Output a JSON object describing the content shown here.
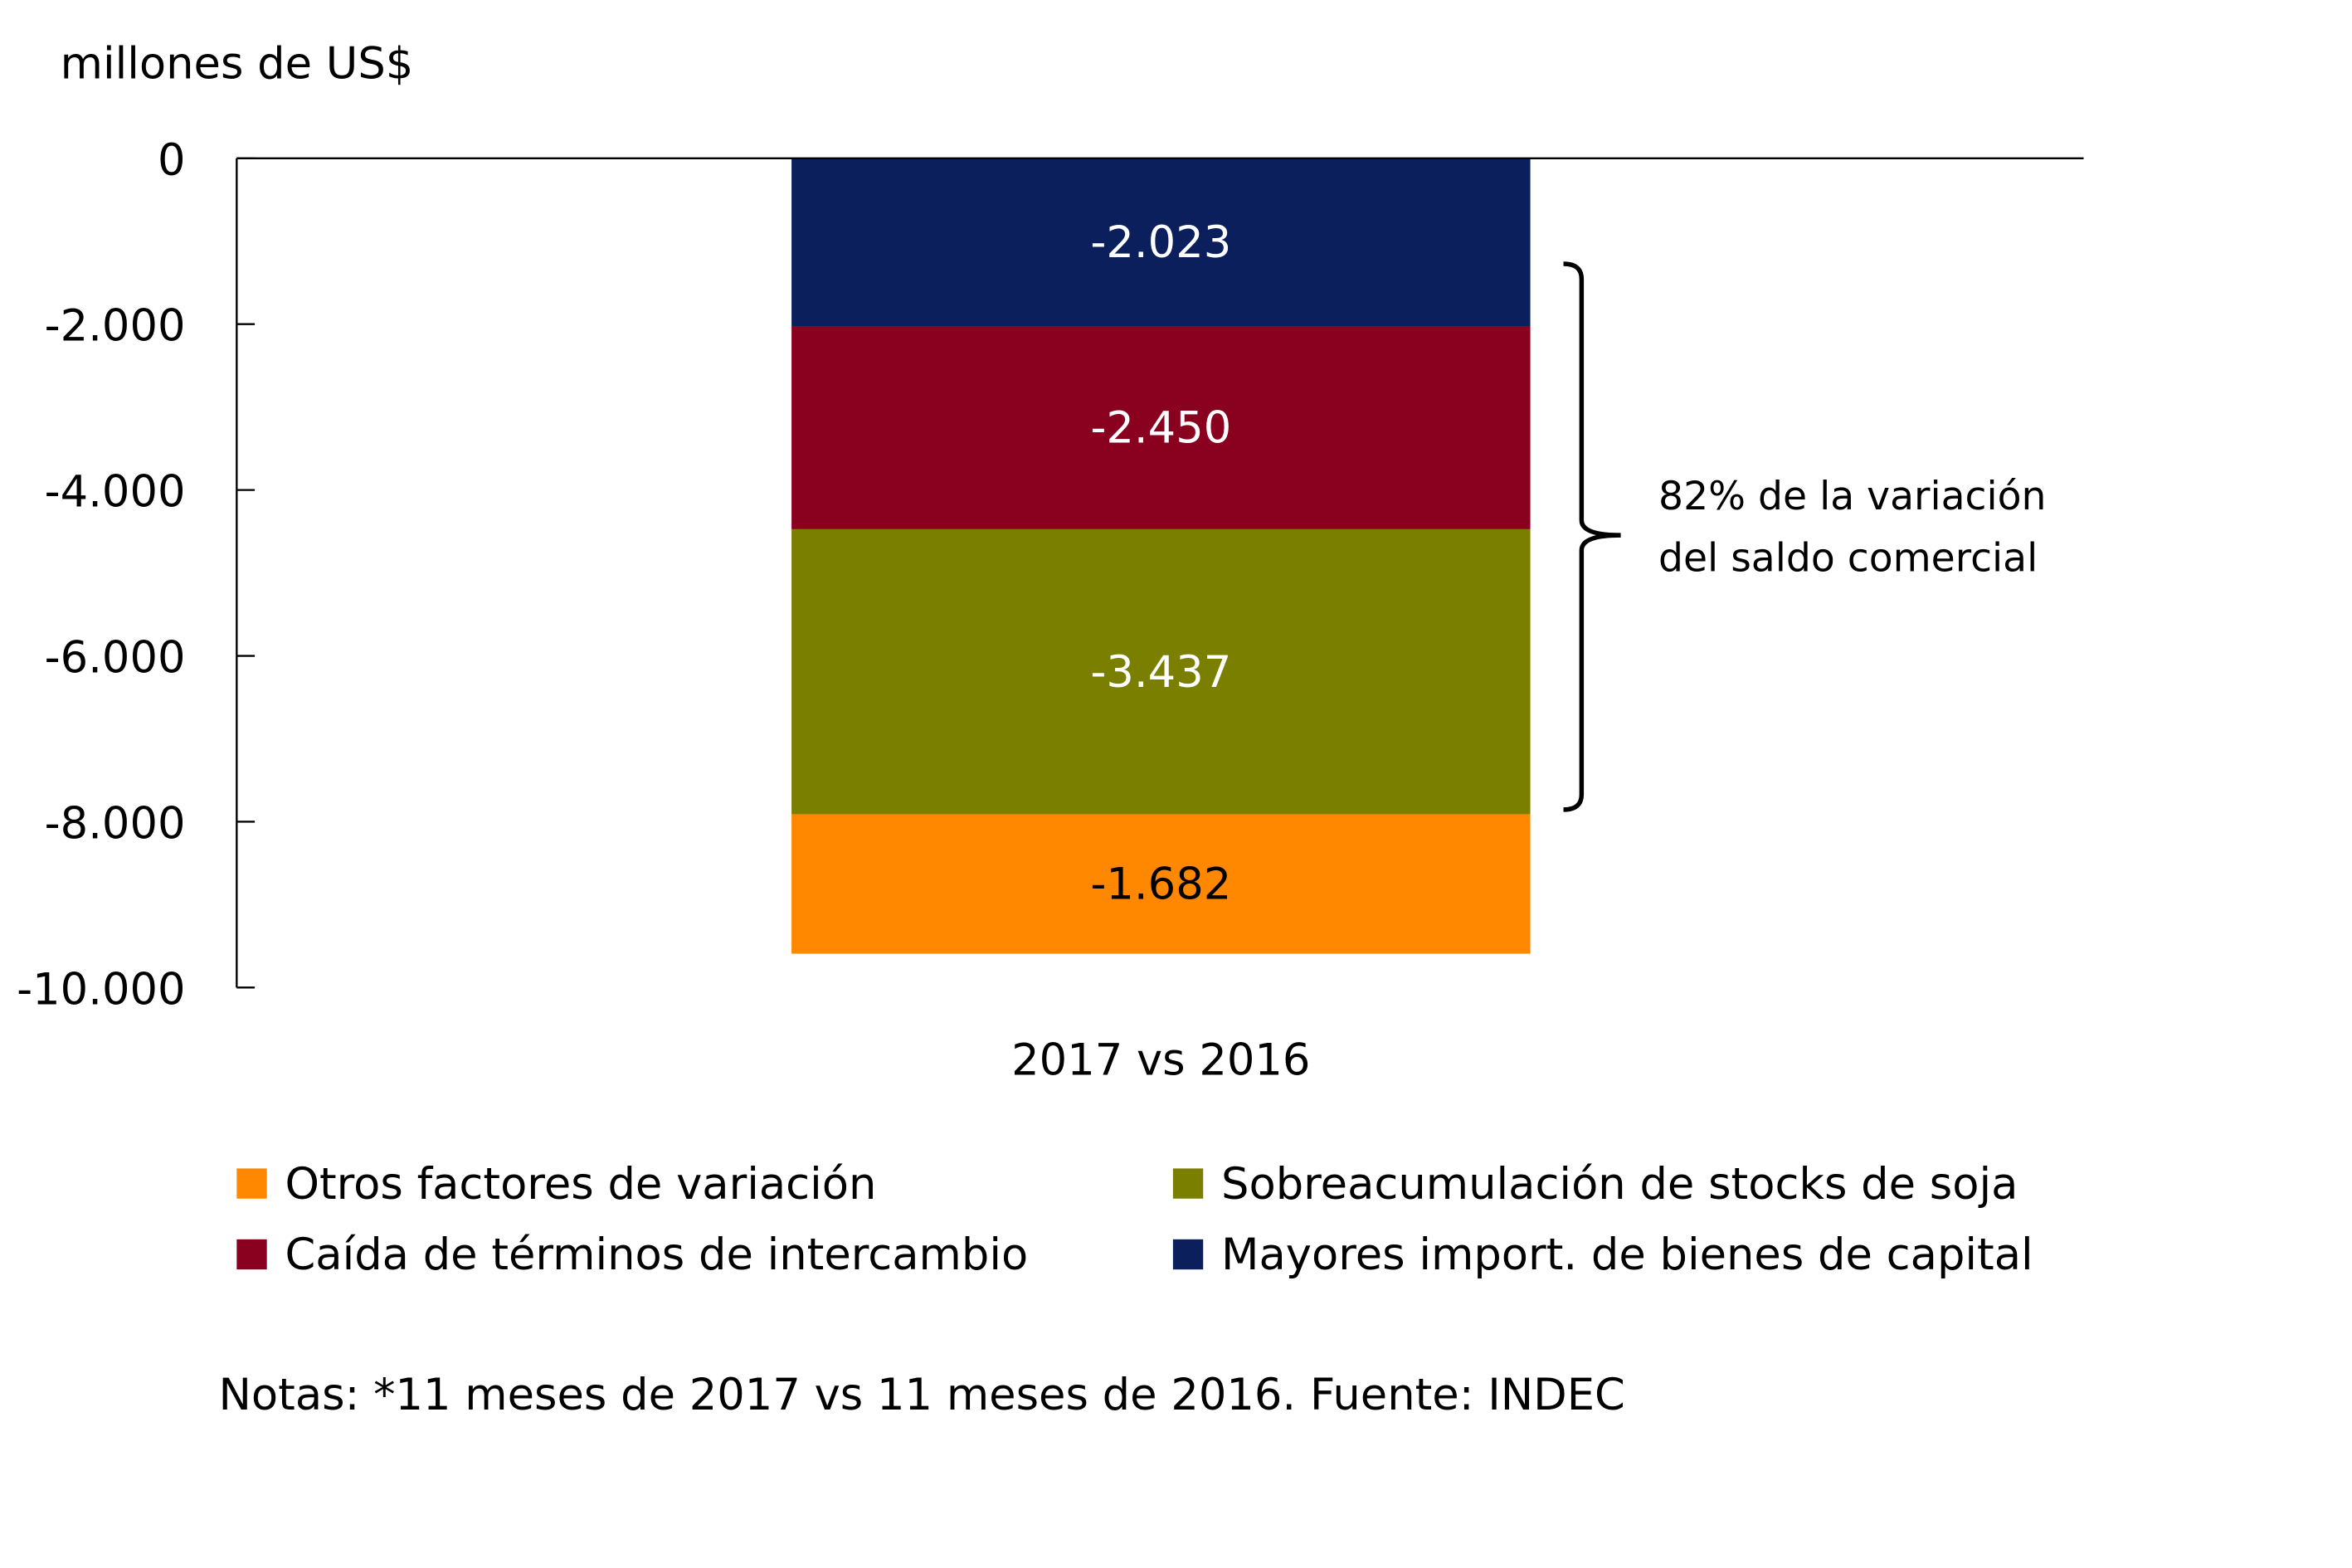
{
  "chart_data": {
    "type": "bar",
    "stacked": true,
    "ylabel": "millones de US$",
    "ylim": [
      -10000,
      0
    ],
    "yticks": [
      0,
      -2000,
      -4000,
      -6000,
      -8000,
      -10000
    ],
    "ytick_labels": [
      "0",
      "-2.000",
      "-4.000",
      "-6.000",
      "-8.000",
      "-10.000"
    ],
    "categories": [
      "2017 vs 2016"
    ],
    "series": [
      {
        "name": "Mayores import. de bienes de capital",
        "values": [
          -2023
        ],
        "label": "-2.023",
        "color": "#0b1f5c",
        "label_color": "#ffffff"
      },
      {
        "name": "Caída de términos de intercambio",
        "values": [
          -2450
        ],
        "label": "-2.450",
        "color": "#8a001f",
        "label_color": "#ffffff"
      },
      {
        "name": "Sobreacumulación de stocks de soja",
        "values": [
          -3437
        ],
        "label": "-3.437",
        "color": "#7a7f00",
        "label_color": "#ffffff"
      },
      {
        "name": "Otros factores de variación",
        "values": [
          -1682
        ],
        "label": "-1.682",
        "color": "#ff8800",
        "label_color": "#000000"
      }
    ],
    "annotation": {
      "line1": "82% de la variación",
      "line2": "del saldo comercial"
    },
    "legend_order": [
      3,
      2,
      1,
      0
    ],
    "legend_placement": "bottom"
  },
  "note": "Notas: *11 meses de 2017 vs 11 meses de 2016. Fuente: INDEC"
}
